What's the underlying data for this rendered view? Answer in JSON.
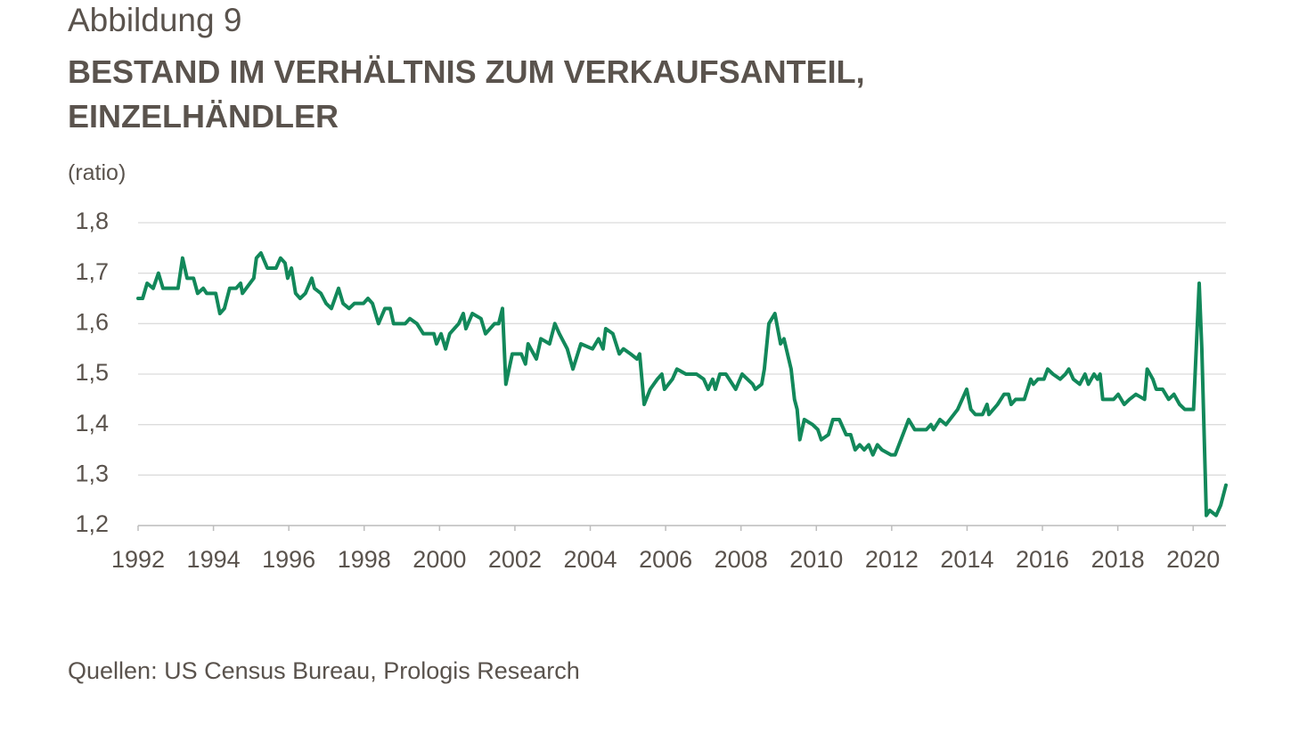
{
  "chart_data": {
    "type": "line",
    "supertitle": "Abbildung 9",
    "title": "BESTAND IM VERHÄLTNIS ZUM VERKAUFSANTEIL, EINZELHÄNDLER",
    "y_label": "(ratio)",
    "source": "Quellen: US Census Bureau, Prologis Research",
    "color": "#12885a",
    "grid": true,
    "xlim": [
      1992,
      2020.87
    ],
    "ylim": [
      1.2,
      1.8
    ],
    "xticks": [
      1992,
      1994,
      1996,
      1998,
      2000,
      2002,
      2004,
      2006,
      2008,
      2010,
      2012,
      2014,
      2016,
      2018,
      2020
    ],
    "yticks": [
      {
        "value": 1.2,
        "label": "1,2"
      },
      {
        "value": 1.3,
        "label": "1,3"
      },
      {
        "value": 1.4,
        "label": "1,4"
      },
      {
        "value": 1.5,
        "label": "1,5"
      },
      {
        "value": 1.6,
        "label": "1,6"
      },
      {
        "value": 1.7,
        "label": "1,7"
      },
      {
        "value": 1.8,
        "label": "1,8"
      }
    ],
    "x": [
      1992.0,
      1992.12,
      1992.24,
      1992.4,
      1992.54,
      1992.66,
      1992.83,
      1993.06,
      1993.18,
      1993.3,
      1993.47,
      1993.58,
      1993.73,
      1993.82,
      1994.06,
      1994.17,
      1994.29,
      1994.43,
      1994.6,
      1994.72,
      1994.77,
      1995.07,
      1995.14,
      1995.26,
      1995.43,
      1995.66,
      1995.78,
      1995.9,
      1995.97,
      1996.07,
      1996.18,
      1996.3,
      1996.44,
      1996.61,
      1996.68,
      1996.85,
      1996.99,
      1997.13,
      1997.32,
      1997.44,
      1997.6,
      1997.74,
      1997.98,
      1998.1,
      1998.22,
      1998.38,
      1998.55,
      1998.69,
      1998.78,
      1999.09,
      1999.21,
      1999.4,
      1999.57,
      1999.85,
      1999.92,
      2000.04,
      2000.16,
      2000.27,
      2000.51,
      2000.63,
      2000.7,
      2000.87,
      2001.1,
      2001.22,
      2001.46,
      2001.57,
      2001.67,
      2001.76,
      2001.93,
      2002.17,
      2002.28,
      2002.35,
      2002.57,
      2002.69,
      2002.92,
      2003.06,
      2003.18,
      2003.39,
      2003.54,
      2003.75,
      2004.06,
      2004.22,
      2004.34,
      2004.41,
      2004.6,
      2004.77,
      2004.88,
      2005.07,
      2005.24,
      2005.31,
      2005.43,
      2005.59,
      2005.78,
      2005.9,
      2005.97,
      2006.18,
      2006.3,
      2006.54,
      2006.82,
      2007.01,
      2007.13,
      2007.25,
      2007.32,
      2007.44,
      2007.6,
      2007.86,
      2008.03,
      2008.31,
      2008.38,
      2008.55,
      2008.62,
      2008.74,
      2008.9,
      2009.05,
      2009.14,
      2009.33,
      2009.42,
      2009.49,
      2009.56,
      2009.68,
      2009.9,
      2010.04,
      2010.13,
      2010.32,
      2010.44,
      2010.61,
      2010.79,
      2010.91,
      2011.03,
      2011.15,
      2011.27,
      2011.39,
      2011.5,
      2011.62,
      2011.74,
      2011.98,
      2012.09,
      2012.45,
      2012.61,
      2012.92,
      2013.04,
      2013.11,
      2013.28,
      2013.44,
      2013.75,
      2013.87,
      2013.99,
      2014.1,
      2014.22,
      2014.41,
      2014.53,
      2014.58,
      2014.81,
      2014.98,
      2015.1,
      2015.17,
      2015.29,
      2015.52,
      2015.69,
      2015.76,
      2015.88,
      2016.04,
      2016.14,
      2016.28,
      2016.47,
      2016.61,
      2016.7,
      2016.82,
      2016.99,
      2017.13,
      2017.22,
      2017.37,
      2017.46,
      2017.53,
      2017.6,
      2017.89,
      2018.01,
      2018.17,
      2018.31,
      2018.48,
      2018.71,
      2018.78,
      2018.93,
      2019.02,
      2019.19,
      2019.35,
      2019.49,
      2019.64,
      2019.78,
      2020.01,
      2020.16,
      2020.23,
      2020.35,
      2020.44,
      2020.61,
      2020.73,
      2020.87
    ],
    "values": [
      1.65,
      1.65,
      1.68,
      1.67,
      1.7,
      1.67,
      1.67,
      1.67,
      1.73,
      1.69,
      1.69,
      1.66,
      1.67,
      1.66,
      1.66,
      1.62,
      1.63,
      1.67,
      1.67,
      1.68,
      1.66,
      1.69,
      1.73,
      1.74,
      1.71,
      1.71,
      1.73,
      1.72,
      1.69,
      1.71,
      1.66,
      1.65,
      1.66,
      1.69,
      1.67,
      1.66,
      1.64,
      1.63,
      1.67,
      1.64,
      1.63,
      1.64,
      1.64,
      1.65,
      1.64,
      1.6,
      1.63,
      1.63,
      1.6,
      1.6,
      1.61,
      1.6,
      1.58,
      1.58,
      1.56,
      1.58,
      1.55,
      1.58,
      1.6,
      1.62,
      1.59,
      1.62,
      1.61,
      1.58,
      1.6,
      1.6,
      1.63,
      1.48,
      1.54,
      1.54,
      1.52,
      1.56,
      1.53,
      1.57,
      1.56,
      1.6,
      1.58,
      1.55,
      1.51,
      1.56,
      1.55,
      1.57,
      1.55,
      1.59,
      1.58,
      1.54,
      1.55,
      1.54,
      1.53,
      1.54,
      1.44,
      1.47,
      1.49,
      1.5,
      1.47,
      1.49,
      1.51,
      1.5,
      1.5,
      1.49,
      1.47,
      1.49,
      1.47,
      1.5,
      1.5,
      1.47,
      1.5,
      1.48,
      1.47,
      1.48,
      1.51,
      1.6,
      1.62,
      1.56,
      1.57,
      1.51,
      1.45,
      1.43,
      1.37,
      1.41,
      1.4,
      1.39,
      1.37,
      1.38,
      1.41,
      1.41,
      1.38,
      1.38,
      1.35,
      1.36,
      1.35,
      1.36,
      1.34,
      1.36,
      1.35,
      1.34,
      1.34,
      1.41,
      1.39,
      1.39,
      1.4,
      1.39,
      1.41,
      1.4,
      1.43,
      1.45,
      1.47,
      1.43,
      1.42,
      1.42,
      1.44,
      1.42,
      1.44,
      1.46,
      1.46,
      1.44,
      1.45,
      1.45,
      1.49,
      1.48,
      1.49,
      1.49,
      1.51,
      1.5,
      1.49,
      1.5,
      1.51,
      1.49,
      1.48,
      1.5,
      1.48,
      1.5,
      1.49,
      1.5,
      1.45,
      1.45,
      1.46,
      1.44,
      1.45,
      1.46,
      1.45,
      1.51,
      1.49,
      1.47,
      1.47,
      1.45,
      1.46,
      1.44,
      1.43,
      1.43,
      1.68,
      1.55,
      1.22,
      1.23,
      1.22,
      1.24,
      1.28
    ]
  }
}
